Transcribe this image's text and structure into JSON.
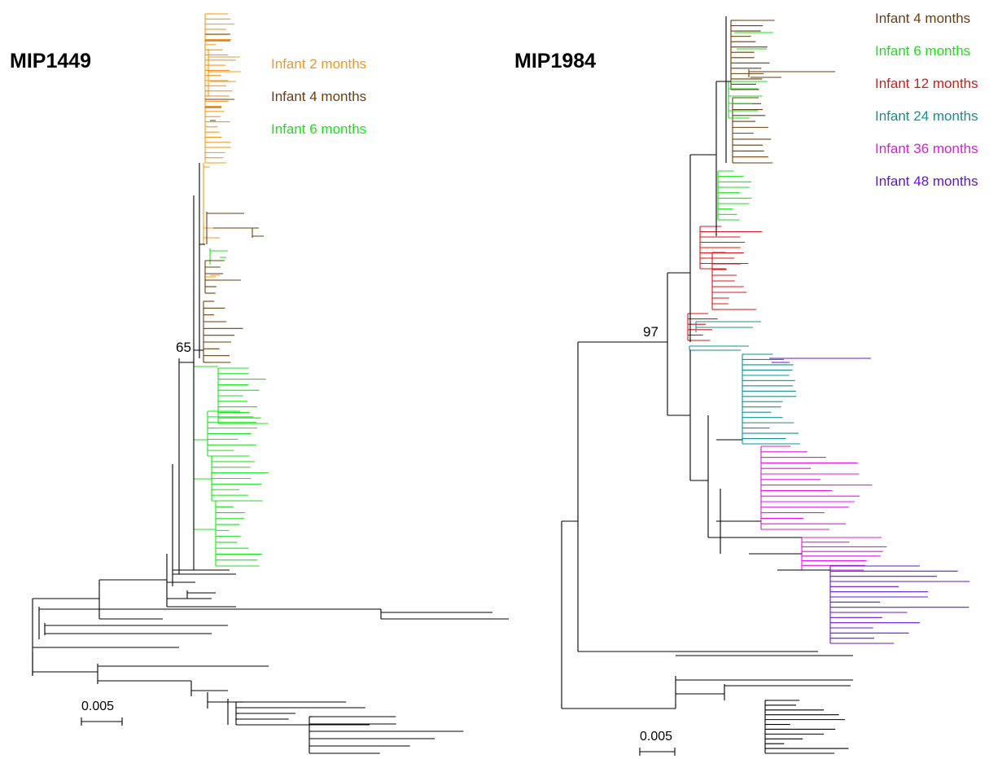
{
  "colors": {
    "month2": "#f5961e",
    "month4": "#6b3d0f",
    "month6": "#14e614",
    "month12": "#e01414",
    "month24": "#13918f",
    "month36": "#e614e6",
    "month48": "#6414d2",
    "base": "#000000"
  },
  "left": {
    "title": "MIP1449",
    "legend": [
      {
        "label": "Infant 2 months",
        "color": "#f5961e"
      },
      {
        "label": "Infant 4 months",
        "color": "#6b3d0f"
      },
      {
        "label": "Infant 6 months",
        "color": "#14e614"
      }
    ],
    "support": "65",
    "scale": "0.005"
  },
  "right": {
    "title": "MIP1984",
    "legend": [
      {
        "label": "Infant 4 months",
        "color": "#6b3d0f"
      },
      {
        "label": "Infant 6 months",
        "color": "#14e614"
      },
      {
        "label": "Infant 12 months",
        "color": "#e01414"
      },
      {
        "label": "Infant 24 months",
        "color": "#13918f"
      },
      {
        "label": "Infant 36 months",
        "color": "#e614e6"
      },
      {
        "label": "Infant 48 months",
        "color": "#6414d2"
      }
    ],
    "support": "97",
    "scale": "0.005"
  }
}
